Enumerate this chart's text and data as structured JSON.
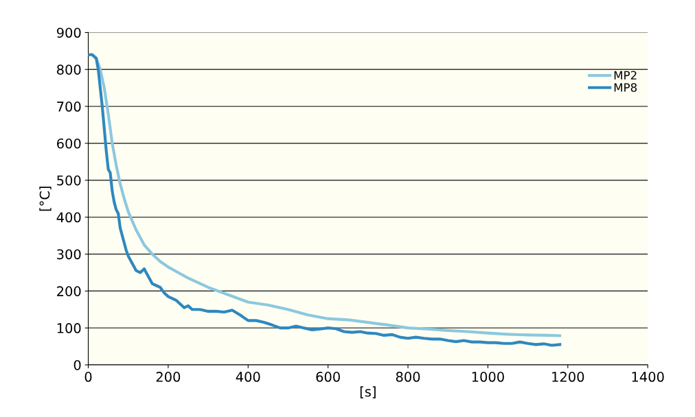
{
  "chart_data": {
    "type": "line",
    "xlabel": "[s]",
    "ylabel": "[°C]",
    "xlim": [
      0,
      1400
    ],
    "xticks": [
      0,
      200,
      400,
      600,
      800,
      1000,
      1200,
      1400
    ],
    "ylim": [
      0,
      900
    ],
    "yticks": [
      0,
      100,
      200,
      300,
      400,
      500,
      600,
      700,
      800,
      900
    ],
    "grid": "y",
    "legend": "right",
    "marker": "none",
    "line_style": "solid",
    "series": [
      {
        "name": "MP2",
        "color": "#8cc8df",
        "x": [
          0,
          10,
          20,
          30,
          40,
          50,
          60,
          70,
          80,
          90,
          100,
          120,
          140,
          160,
          180,
          200,
          250,
          300,
          350,
          400,
          450,
          500,
          550,
          600,
          650,
          700,
          750,
          800,
          850,
          900,
          950,
          1000,
          1050,
          1100,
          1150,
          1180
        ],
        "values": [
          840,
          840,
          830,
          800,
          750,
          680,
          600,
          540,
          490,
          450,
          415,
          365,
          325,
          300,
          280,
          265,
          235,
          210,
          190,
          170,
          162,
          150,
          135,
          125,
          122,
          115,
          108,
          100,
          97,
          93,
          90,
          86,
          83,
          81,
          80,
          79
        ]
      },
      {
        "name": "MP8",
        "color": "#2e88c0",
        "x": [
          0,
          10,
          20,
          25,
          30,
          35,
          40,
          45,
          50,
          55,
          60,
          65,
          70,
          75,
          80,
          85,
          90,
          95,
          100,
          110,
          120,
          130,
          140,
          145,
          150,
          160,
          170,
          180,
          190,
          200,
          210,
          220,
          230,
          240,
          250,
          260,
          280,
          300,
          320,
          340,
          360,
          380,
          400,
          420,
          440,
          460,
          480,
          500,
          520,
          540,
          560,
          580,
          600,
          620,
          640,
          660,
          680,
          700,
          720,
          740,
          760,
          780,
          800,
          820,
          840,
          860,
          880,
          900,
          920,
          940,
          960,
          980,
          1000,
          1020,
          1040,
          1060,
          1080,
          1100,
          1120,
          1140,
          1160,
          1180
        ],
        "values": [
          840,
          840,
          830,
          800,
          750,
          700,
          640,
          580,
          530,
          520,
          470,
          440,
          420,
          410,
          370,
          350,
          330,
          310,
          295,
          275,
          255,
          250,
          260,
          250,
          240,
          220,
          215,
          210,
          195,
          185,
          180,
          175,
          165,
          155,
          160,
          150,
          150,
          145,
          145,
          143,
          148,
          135,
          120,
          120,
          115,
          108,
          100,
          100,
          105,
          100,
          95,
          97,
          100,
          98,
          90,
          88,
          90,
          86,
          85,
          80,
          82,
          75,
          72,
          75,
          72,
          70,
          70,
          66,
          63,
          66,
          62,
          62,
          60,
          60,
          58,
          58,
          62,
          58,
          55,
          57,
          53,
          55
        ]
      }
    ]
  }
}
